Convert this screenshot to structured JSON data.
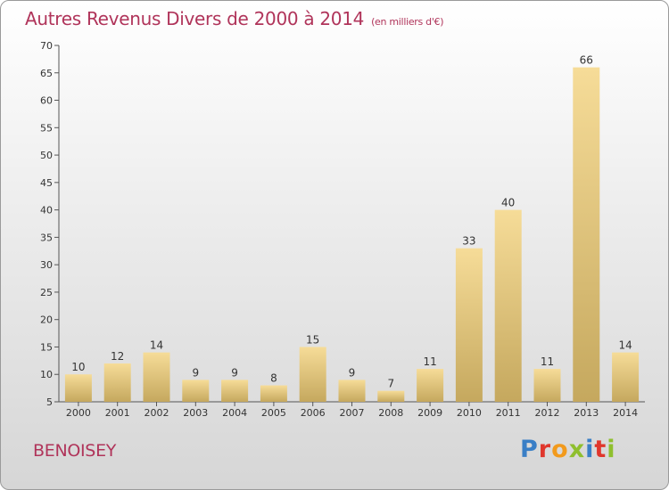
{
  "chart_title": "Autres Revenus Divers de 2000 à 2014",
  "chart_unit": "(en milliers d'€)",
  "commune": "BENOISEY",
  "logo_text": "Proxiti",
  "colors": {
    "title": "#b0345a",
    "bar_light": "#f6dc98",
    "bar_dark": "#c5a85e",
    "logo": [
      "#3a7fc6",
      "#e0362c",
      "#f29a1c",
      "#8fbf2e",
      "#3a7fc6",
      "#e0362c",
      "#8fbf2e"
    ]
  },
  "chart_data": {
    "type": "bar",
    "categories": [
      "2000",
      "2001",
      "2002",
      "2003",
      "2004",
      "2005",
      "2006",
      "2007",
      "2008",
      "2009",
      "2010",
      "2011",
      "2012",
      "2013",
      "2014"
    ],
    "values": [
      10,
      12,
      14,
      9,
      9,
      8,
      15,
      9,
      7,
      11,
      33,
      40,
      11,
      66,
      14
    ],
    "ylim": [
      5,
      70
    ],
    "yticks": [
      5,
      10,
      15,
      20,
      25,
      30,
      35,
      40,
      45,
      50,
      55,
      60,
      65,
      70
    ],
    "grid": false,
    "legend": "none"
  }
}
